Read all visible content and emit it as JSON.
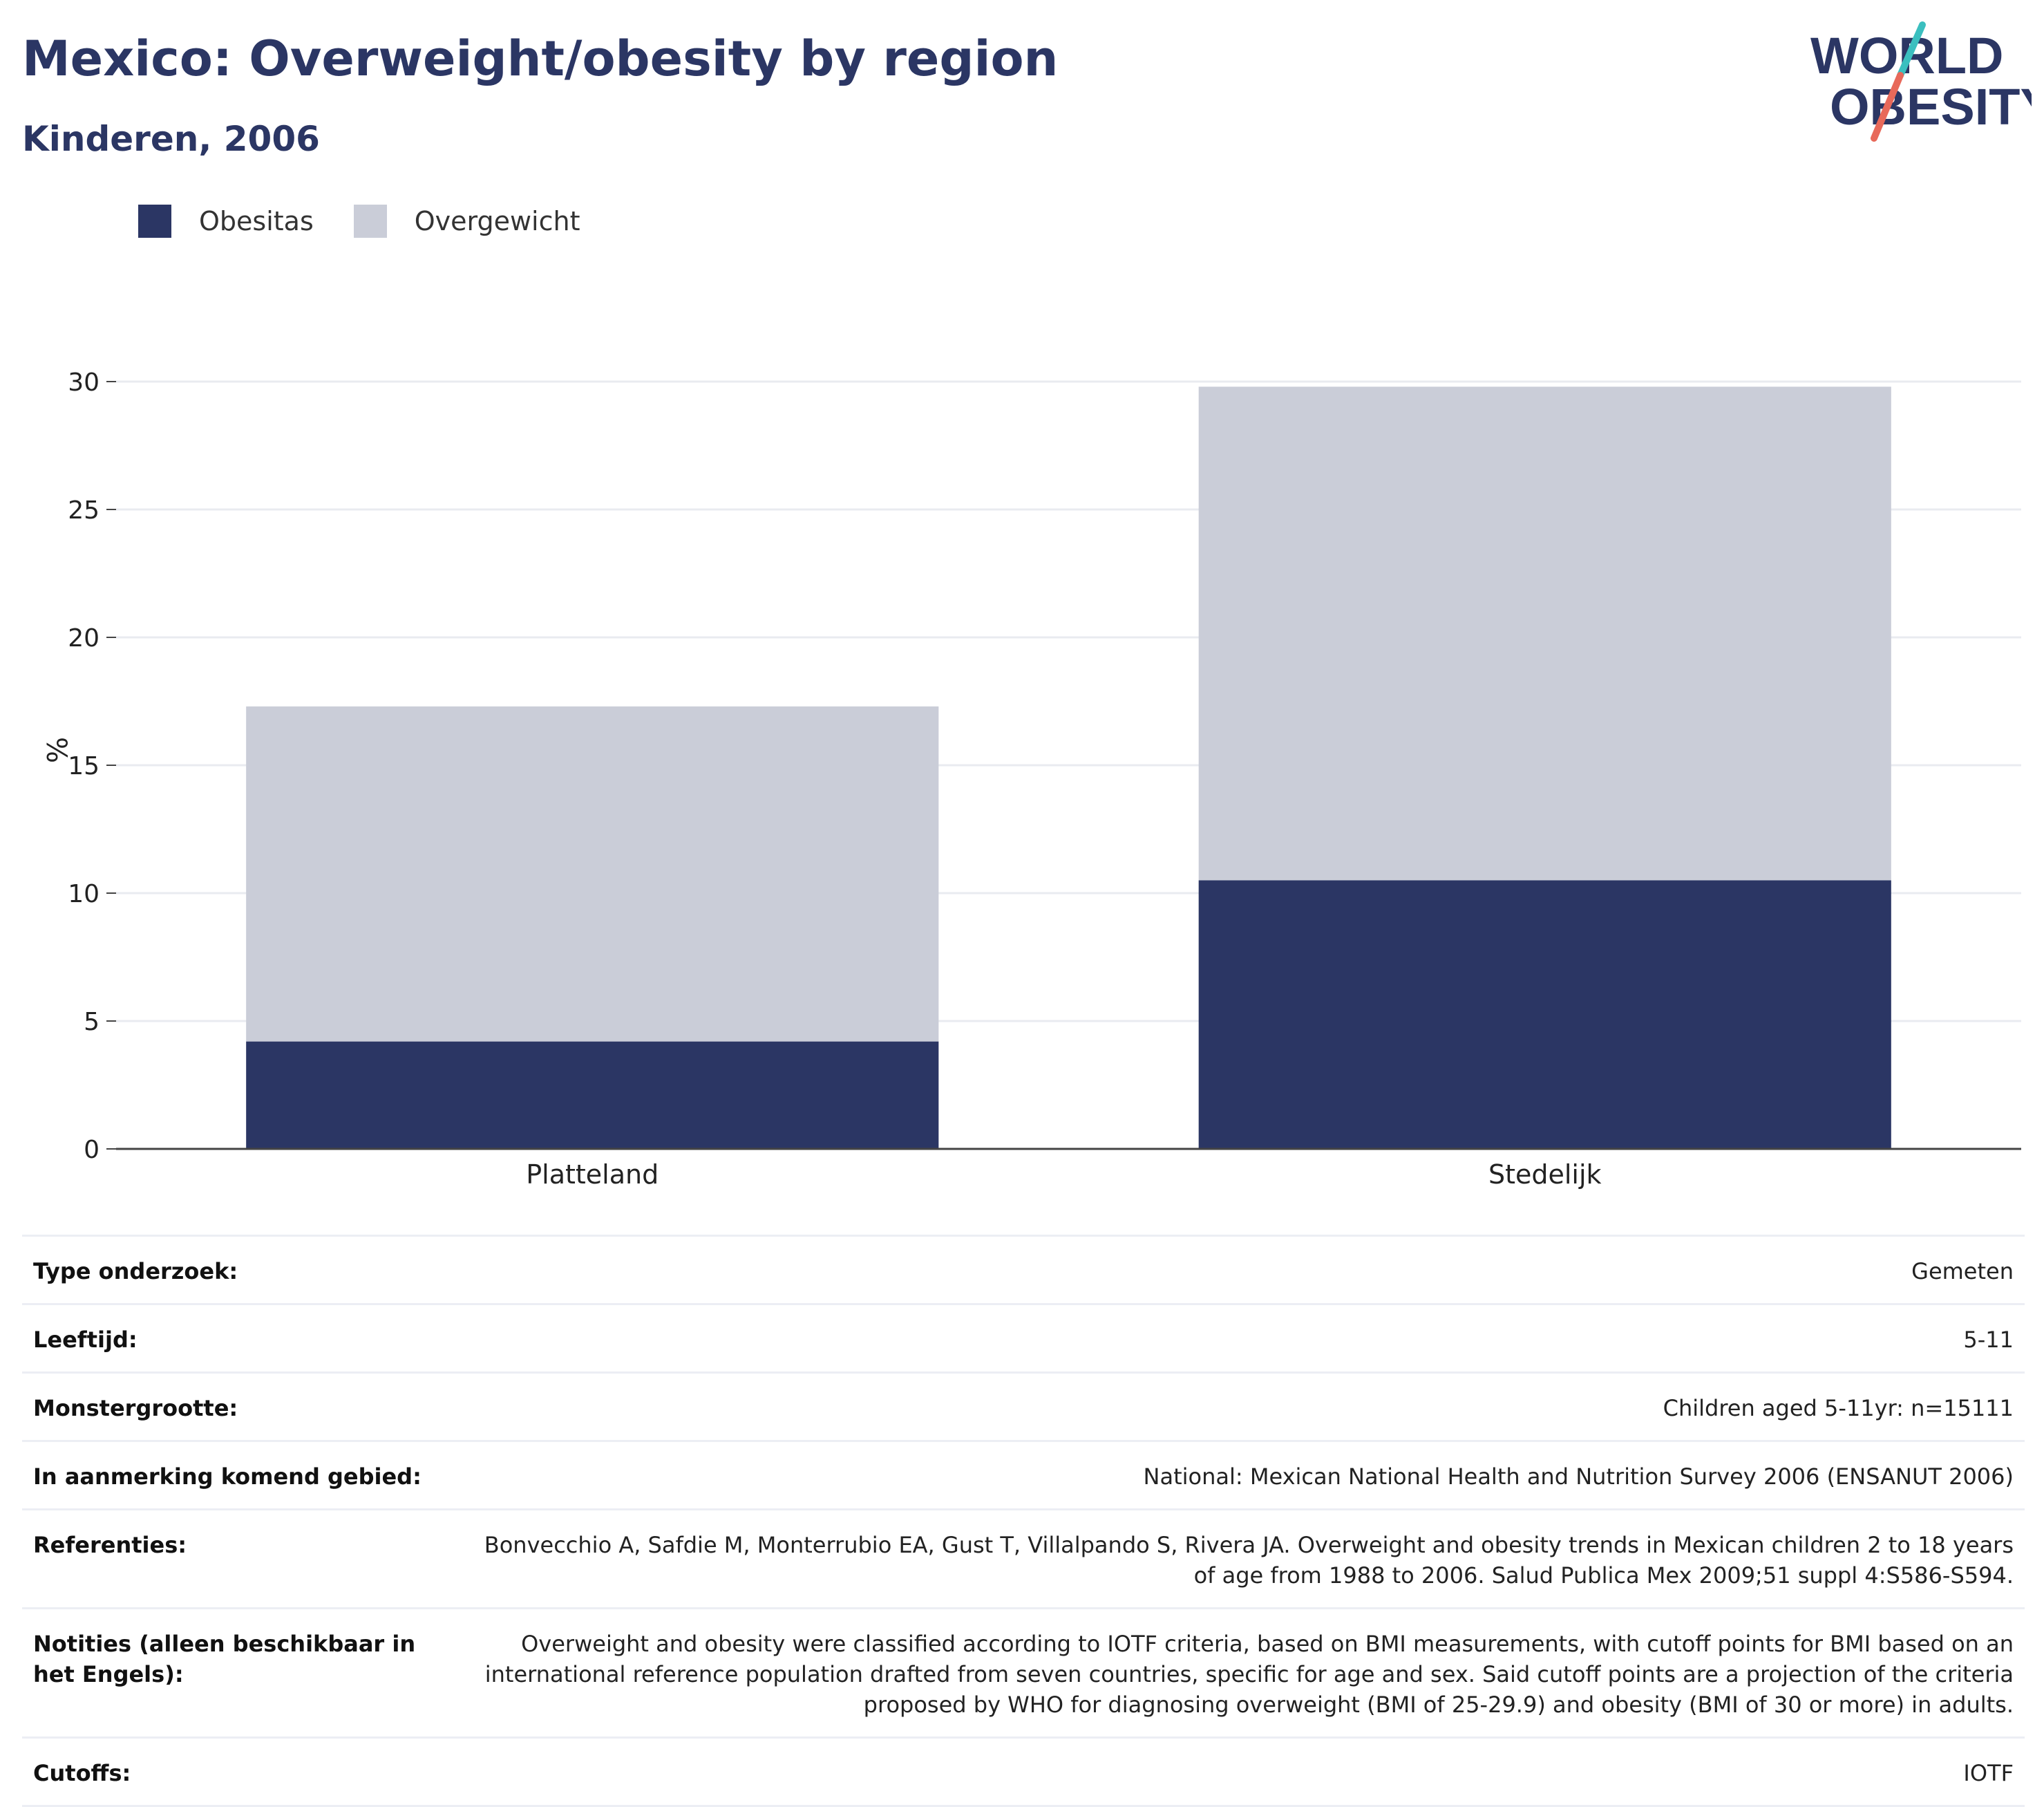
{
  "header": {
    "title": "Mexico: Overweight/obesity by region",
    "subtitle": "Kinderen, 2006"
  },
  "logo": {
    "line1": "WORLD",
    "line2": "OBESITY",
    "name": "world-obesity-logo"
  },
  "colors": {
    "title": "#2b3664",
    "obesitas": "#2b3664",
    "overgewicht": "#cacdd8",
    "logo_teal": "#3bbfbf",
    "logo_coral": "#e8695a"
  },
  "chart_data": {
    "type": "bar",
    "stacked": true,
    "categories": [
      "Platteland",
      "Stedelijk"
    ],
    "series": [
      {
        "name": "Obesitas",
        "values": [
          4.2,
          10.5
        ],
        "color": "#2b3664"
      },
      {
        "name": "Overgewicht",
        "values": [
          13.1,
          19.3
        ],
        "color": "#cacdd8"
      }
    ],
    "ylabel": "%",
    "ylim": [
      0,
      30
    ],
    "yticks": [
      "0",
      "5",
      "10",
      "15",
      "20",
      "25",
      "30"
    ],
    "legend_position": "top-left",
    "grid": true
  },
  "info": [
    {
      "label": "Type onderzoek:",
      "value": "Gemeten"
    },
    {
      "label": "Leeftijd:",
      "value": "5-11"
    },
    {
      "label": "Monstergrootte:",
      "value": "Children aged 5-11yr: n=15111"
    },
    {
      "label": "In aanmerking komend gebied:",
      "value": "National: Mexican National Health and Nutrition Survey 2006 (ENSANUT 2006)"
    },
    {
      "label": "Referenties:",
      "value": "Bonvecchio A, Safdie M, Monterrubio EA, Gust T, Villalpando S, Rivera JA. Overweight and obesity trends in Mexican children 2 to 18 years of age from 1988 to 2006. Salud Publica Mex 2009;51 suppl 4:S586-S594."
    },
    {
      "label": "Notities (alleen beschikbaar in het Engels):",
      "value": "Overweight and obesity were classified according to IOTF criteria, based on BMI measurements, with cutoff points for BMI based on an international reference population drafted from seven countries, specific for age and sex. Said cutoff points are a projection of the criteria proposed by WHO for diagnosing overweight (BMI of 25-29.9) and obesity (BMI of 30 or more) in adults."
    },
    {
      "label": "Cutoffs:",
      "value": "IOTF"
    }
  ]
}
